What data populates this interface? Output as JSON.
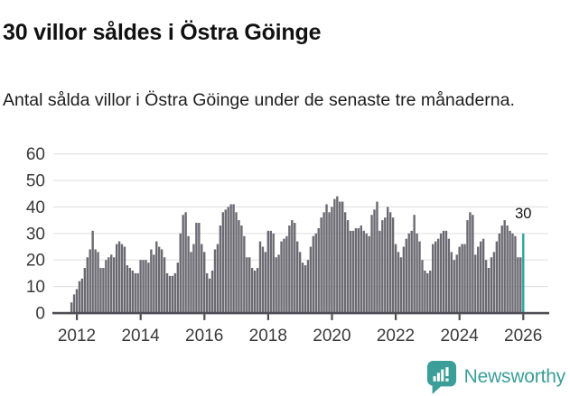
{
  "header": {
    "title": "30 villor såldes i Östra Göinge",
    "subtitle": "Antal sålda villor i Östra Göinge under de senaste tre månaderna."
  },
  "chart_data": {
    "type": "bar",
    "title": "30 villor såldes i Östra Göinge",
    "subtitle": "Antal sålda villor i Östra Göinge under de senaste tre månaderna.",
    "frequency": "monthly",
    "start": "2011-11",
    "end": "2026-01",
    "values": [
      4,
      7,
      9,
      12,
      13,
      17,
      21,
      24,
      31,
      24,
      23,
      17,
      17,
      20,
      21,
      22,
      21,
      26,
      27,
      26,
      25,
      18,
      17,
      16,
      15,
      15,
      20,
      20,
      20,
      19,
      24,
      22,
      27,
      25,
      24,
      21,
      15,
      14,
      14,
      15,
      19,
      30,
      37,
      38,
      29,
      23,
      26,
      34,
      34,
      26,
      23,
      15,
      13,
      16,
      24,
      26,
      33,
      38,
      39,
      40,
      41,
      41,
      38,
      35,
      33,
      29,
      21,
      21,
      17,
      16,
      17,
      27,
      25,
      23,
      31,
      31,
      30,
      21,
      22,
      27,
      28,
      29,
      33,
      35,
      34,
      27,
      23,
      19,
      18,
      20,
      25,
      29,
      30,
      32,
      36,
      38,
      41,
      38,
      40,
      43,
      44,
      42,
      42,
      38,
      35,
      31,
      31,
      32,
      32,
      33,
      31,
      30,
      29,
      37,
      39,
      42,
      31,
      35,
      36,
      40,
      38,
      36,
      26,
      23,
      21,
      25,
      28,
      30,
      31,
      37,
      30,
      27,
      20,
      16,
      15,
      16,
      26,
      27,
      28,
      30,
      31,
      31,
      28,
      23,
      20,
      22,
      25,
      26,
      26,
      35,
      38,
      37,
      22,
      25,
      27,
      28,
      20,
      17,
      21,
      23,
      27,
      30,
      33,
      35,
      33,
      31,
      30,
      29,
      21,
      21,
      30
    ],
    "highlight": {
      "index": 170,
      "label": "30",
      "value": 30
    },
    "ylim": [
      0,
      60
    ],
    "yticks": [
      0,
      10,
      20,
      30,
      40,
      50,
      60
    ],
    "xticks": [
      "2012",
      "2014",
      "2016",
      "2018",
      "2020",
      "2022",
      "2024",
      "2026"
    ],
    "grid": true,
    "legend": false,
    "bar_color": "#6b6a72",
    "highlight_color": "#29a7a0"
  },
  "footer": {
    "brand": "Newsworthy"
  },
  "colors": {
    "bar_gray": "#6b6a72",
    "accent_teal": "#29a7a0",
    "logo_teal": "#3b9e98",
    "axis_line": "#4e4d55",
    "grid_line": "#e3e3e3",
    "tick_text": "#3a3a3a"
  }
}
